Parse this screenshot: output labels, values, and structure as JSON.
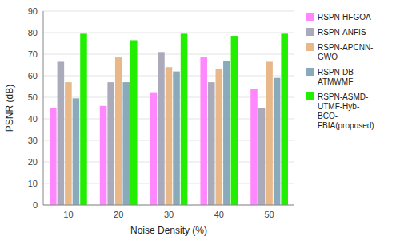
{
  "chart_data": {
    "type": "bar",
    "categories": [
      "10",
      "20",
      "30",
      "40",
      "50"
    ],
    "series": [
      {
        "name": "RSPN-HFGOA",
        "color": "#FF88FF",
        "values": [
          45.0,
          46.0,
          52.0,
          68.5,
          54.0
        ]
      },
      {
        "name": "RSPN-ANFIS",
        "color": "#AAAABB",
        "values": [
          66.5,
          57.0,
          71.0,
          57.0,
          45.0
        ]
      },
      {
        "name": "RSPN-APCNN-\nGWO",
        "color": "#E8B888",
        "values": [
          57.0,
          68.5,
          64.0,
          63.0,
          66.5
        ]
      },
      {
        "name": "RSPN-DB-\nATMWMF",
        "color": "#88AABB",
        "values": [
          49.5,
          57.0,
          62.0,
          67.0,
          59.0
        ]
      },
      {
        "name": "RSPN-ASMD-\nUTMF-Hyb-\nBCO-\nFBIA(proposed)",
        "color": "#22EE00",
        "values": [
          79.5,
          76.5,
          79.5,
          78.5,
          79.5
        ]
      }
    ],
    "x_label": "Noise Density (%)",
    "y_label": "PSNR (dB)",
    "ylim": [
      0,
      90
    ],
    "yticks": [
      0,
      10,
      20,
      30,
      40,
      50,
      60,
      70,
      80,
      90
    ],
    "grid": true,
    "legend": "right"
  }
}
